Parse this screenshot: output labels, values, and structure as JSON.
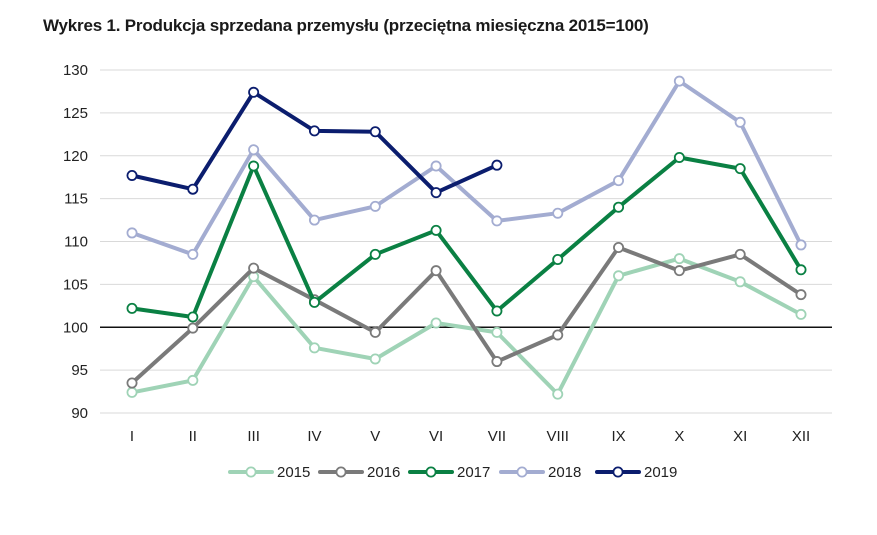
{
  "chart_data": {
    "type": "line",
    "title": "Wykres 1. Produkcja sprzedana przemysłu (przeciętna miesięczna 2015=100)",
    "xlabel": "",
    "ylabel": "",
    "categories": [
      "I",
      "II",
      "III",
      "IV",
      "V",
      "VI",
      "VII",
      "VIII",
      "IX",
      "X",
      "XI",
      "XII"
    ],
    "ylim": [
      90,
      130
    ],
    "yticks": [
      90,
      95,
      100,
      105,
      110,
      115,
      120,
      125,
      130
    ],
    "reference_line": 100,
    "grid": true,
    "legend_position": "bottom",
    "series": [
      {
        "name": "2015",
        "color": "#9fd3b6",
        "values": [
          92.4,
          93.8,
          105.9,
          97.6,
          96.3,
          100.5,
          99.4,
          92.2,
          106.0,
          108.0,
          105.3,
          101.5
        ]
      },
      {
        "name": "2016",
        "color": "#7a7a7a",
        "values": [
          93.5,
          99.9,
          106.9,
          103.2,
          99.4,
          106.6,
          96.0,
          99.1,
          109.3,
          106.6,
          108.5,
          103.8
        ]
      },
      {
        "name": "2017",
        "color": "#0a8043",
        "values": [
          102.2,
          101.2,
          118.8,
          102.9,
          108.5,
          111.3,
          101.9,
          107.9,
          114.0,
          119.8,
          118.5,
          106.7
        ]
      },
      {
        "name": "2018",
        "color": "#a3acd1",
        "values": [
          111.0,
          108.5,
          120.7,
          112.5,
          114.1,
          118.8,
          112.4,
          113.3,
          117.1,
          128.7,
          123.9,
          109.6
        ]
      },
      {
        "name": "2019",
        "color": "#0b1d6e",
        "values": [
          117.7,
          116.1,
          127.4,
          122.9,
          122.8,
          115.7,
          118.9,
          null,
          null,
          null,
          null,
          null
        ]
      }
    ]
  }
}
